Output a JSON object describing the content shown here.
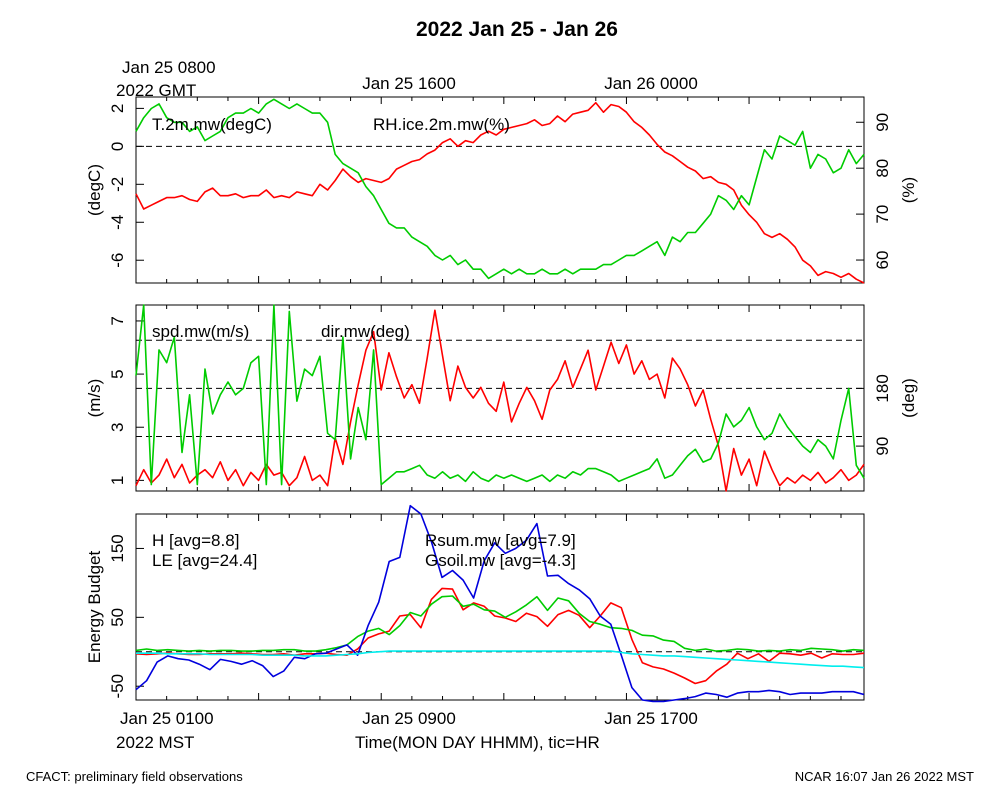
{
  "title": "2022 Jan 25 - Jan 26",
  "top_time_labels": [
    "Jan 25 1600",
    "Jan 26 0000"
  ],
  "top_first_label": [
    "Jan 25 0800",
    "2022 GMT"
  ],
  "bottom_time_labels": [
    "Jan 25 0900",
    "Jan 25 1700"
  ],
  "bottom_first_label": [
    "Jan 25 0100",
    "2022 MST"
  ],
  "xlabel": "Time(MON DAY HHMM), tic=HR",
  "footer_left": "CFACT: preliminary field observations",
  "footer_right": "NCAR 16:07 Jan 26 2022 MST",
  "colors": {
    "red": "#ff0000",
    "green": "#00cc00",
    "blue": "#0000dd",
    "cyan": "#00eeee"
  },
  "chart_data": [
    {
      "type": "line",
      "panel": "temperature-humidity",
      "x_hours_mst": [
        0,
        0.25,
        0.5,
        0.75,
        1,
        1.25,
        1.5,
        1.75,
        2,
        2.25,
        2.5,
        2.75,
        3,
        3.25,
        3.5,
        3.75,
        4,
        4.25,
        4.5,
        4.75,
        5,
        5.25,
        5.5,
        5.75,
        6,
        6.25,
        6.5,
        6.75,
        7,
        7.25,
        7.5,
        7.75,
        8,
        8.25,
        8.5,
        8.75,
        9,
        9.25,
        9.5,
        9.75,
        10,
        10.25,
        10.5,
        10.75,
        11,
        11.25,
        11.5,
        11.75,
        12,
        12.25,
        12.5,
        12.75,
        13,
        13.25,
        13.5,
        13.75,
        14,
        14.25,
        14.5,
        14.75,
        15,
        15.25,
        15.5,
        15.75,
        16,
        16.25,
        16.5,
        16.75,
        17,
        17.25,
        17.5,
        17.75,
        18,
        18.25,
        18.5,
        18.75,
        19,
        19.25,
        19.5,
        19.75,
        20,
        20.25,
        20.5,
        20.75,
        21,
        21.25,
        21.5,
        21.75,
        22,
        22.25,
        22.5,
        22.75,
        23,
        23.25,
        23.5,
        23.75
      ],
      "ylabel_left": "(degC)",
      "ylabel_right": "(%)",
      "ylim_left": [
        -7.2,
        2.6
      ],
      "ylim_right": [
        55,
        95.5
      ],
      "yticks_left": [
        2,
        0,
        -2,
        -4,
        -6
      ],
      "yticks_right": [
        90,
        80,
        70,
        60
      ],
      "dashed_y_left": [
        0
      ],
      "series": [
        {
          "name": "T.2m.mw(degC)",
          "axis": "left",
          "color": "#ff0000",
          "values": [
            -2.5,
            -3.3,
            -3.1,
            -2.9,
            -2.7,
            -2.7,
            -2.6,
            -2.8,
            -2.9,
            -2.4,
            -2.2,
            -2.6,
            -2.6,
            -2.5,
            -2.7,
            -2.6,
            -2.6,
            -2.3,
            -2.7,
            -2.6,
            -2.7,
            -2.4,
            -2.5,
            -2.6,
            -2.0,
            -2.3,
            -1.8,
            -1.2,
            -1.6,
            -1.9,
            -1.7,
            -1.8,
            -1.9,
            -1.7,
            -1.2,
            -1.0,
            -0.8,
            -0.7,
            -0.4,
            -0.2,
            0.2,
            0.4,
            0.0,
            0.3,
            0.2,
            0.6,
            0.8,
            0.6,
            0.9,
            1.0,
            1.1,
            1.2,
            1.4,
            1.1,
            1.2,
            1.6,
            1.3,
            1.7,
            1.8,
            1.9,
            2.3,
            1.8,
            2.2,
            2.1,
            1.8,
            1.3,
            1.0,
            0.6,
            0.1,
            -0.3,
            -0.5,
            -0.8,
            -1.1,
            -1.3,
            -1.7,
            -1.6,
            -1.9,
            -2.0,
            -2.3,
            -3.1,
            -3.6,
            -4.0,
            -4.6,
            -4.8,
            -4.6,
            -4.9,
            -5.3,
            -6.0,
            -6.3,
            -6.8,
            -6.6,
            -6.7,
            -6.9,
            -6.7,
            -7.0,
            -7.2
          ]
        },
        {
          "name": "RH.ice.2m.mw(%)",
          "axis": "right",
          "color": "#00cc00",
          "values": [
            88,
            91,
            93,
            94,
            91,
            90,
            90,
            88,
            89,
            86,
            87,
            88,
            91,
            92,
            92,
            93,
            92,
            94,
            95,
            94,
            93,
            94,
            93,
            92,
            92,
            90,
            83,
            81,
            80,
            79,
            76,
            74,
            71,
            68,
            67,
            67,
            65,
            64,
            63,
            61,
            60,
            61,
            59,
            60,
            58,
            58,
            56,
            57,
            58,
            57,
            58,
            57,
            57,
            58,
            57,
            57,
            58,
            57,
            58,
            58,
            58,
            59,
            59,
            60,
            61,
            61,
            62,
            63,
            64,
            61,
            65,
            64,
            66,
            66,
            68,
            70,
            74,
            73,
            71,
            74,
            72,
            78,
            84,
            82,
            87,
            86,
            85,
            88,
            80,
            83,
            82,
            79,
            80,
            84,
            81,
            83
          ]
        }
      ]
    },
    {
      "type": "line",
      "panel": "wind",
      "ylabel_left": "(m/s)",
      "ylabel_right": "(deg)",
      "ylim_left": [
        0.6,
        7.6
      ],
      "ylim_right": [
        20,
        310
      ],
      "yticks_left": [
        7,
        5,
        3,
        1
      ],
      "yticks_right": [
        180,
        90
      ],
      "dashed_y_right": [
        255,
        180,
        105
      ],
      "series": [
        {
          "name": "spd.mw(m/s)",
          "axis": "left",
          "color": "#ff0000",
          "values": [
            0.8,
            1.4,
            0.9,
            1.2,
            1.8,
            1.1,
            1.6,
            0.9,
            1.2,
            1.4,
            1.1,
            1.7,
            1.0,
            1.4,
            0.8,
            1.3,
            1.0,
            1.6,
            1.2,
            1.3,
            0.8,
            1.1,
            1.9,
            1.0,
            1.2,
            0.8,
            2.6,
            1.6,
            3.2,
            4.6,
            5.9,
            6.6,
            4.4,
            5.8,
            4.9,
            4.1,
            4.6,
            3.9,
            5.6,
            7.4,
            5.7,
            4.0,
            5.3,
            4.5,
            4.1,
            4.5,
            3.9,
            3.6,
            4.7,
            3.2,
            3.9,
            4.5,
            4.0,
            3.3,
            4.4,
            4.8,
            5.5,
            4.5,
            5.2,
            5.9,
            4.4,
            5.3,
            6.2,
            5.4,
            6.1,
            5.0,
            5.5,
            4.8,
            5.0,
            4.1,
            5.6,
            5.2,
            4.6,
            3.8,
            4.4,
            3.3,
            2.3,
            0.6,
            2.2,
            1.2,
            1.8,
            0.8,
            2.1,
            1.4,
            0.8,
            1.1,
            0.9,
            1.2,
            1.0,
            1.3,
            0.9,
            1.1,
            1.4,
            1.0,
            1.2,
            1.6
          ]
        },
        {
          "name": "dir.mw(deg)",
          "axis": "right",
          "color": "#00cc00",
          "values": [
            200,
            310,
            30,
            240,
            220,
            260,
            80,
            170,
            30,
            210,
            140,
            170,
            190,
            170,
            180,
            220,
            230,
            30,
            310,
            30,
            300,
            160,
            210,
            200,
            230,
            110,
            100,
            260,
            70,
            150,
            100,
            240,
            30,
            40,
            50,
            50,
            55,
            60,
            45,
            40,
            50,
            40,
            45,
            35,
            50,
            40,
            35,
            45,
            40,
            45,
            40,
            35,
            40,
            45,
            35,
            45,
            40,
            50,
            45,
            55,
            55,
            50,
            45,
            35,
            40,
            45,
            50,
            55,
            70,
            40,
            45,
            60,
            75,
            85,
            65,
            70,
            95,
            140,
            120,
            130,
            150,
            120,
            100,
            110,
            140,
            120,
            105,
            90,
            80,
            100,
            90,
            70,
            130,
            180,
            60,
            40
          ]
        }
      ]
    },
    {
      "type": "line",
      "panel": "energy-budget",
      "ylabel_left": "Energy Budget",
      "ylim_left": [
        -70,
        200
      ],
      "yticks_left": [
        150,
        50,
        -50
      ],
      "dashed_y_left": [
        0
      ],
      "series": [
        {
          "name": "H",
          "avg": "8.8",
          "label": "H [avg=8.8]",
          "color": "#ff0000",
          "values": [
            -3,
            -4,
            -3,
            -2,
            -3,
            -4,
            -4,
            -3,
            -3,
            -3,
            -2,
            -3,
            -4,
            -4,
            -3,
            -5,
            -3,
            -3,
            -2,
            -4,
            -5,
            4,
            20,
            26,
            30,
            52,
            54,
            35,
            76,
            92,
            91,
            61,
            71,
            66,
            52,
            49,
            44,
            56,
            51,
            37,
            54,
            60,
            53,
            35,
            52,
            71,
            64,
            18,
            -16,
            -22,
            -25,
            -31,
            -38,
            -46,
            -42,
            -28,
            -18,
            -2,
            -10,
            -3,
            -14,
            -2,
            -3,
            -5,
            -2,
            -9,
            -3,
            -4,
            -4,
            -2
          ]
        },
        {
          "name": "LE",
          "avg": "24.4",
          "label": "LE [avg=24.4]",
          "color": "#00cc00",
          "values": [
            2,
            4,
            2,
            3,
            2,
            1,
            2,
            1,
            2,
            2,
            1,
            1,
            2,
            2,
            3,
            3,
            1,
            1,
            3,
            6,
            10,
            22,
            30,
            34,
            25,
            38,
            57,
            52,
            69,
            80,
            81,
            66,
            69,
            61,
            59,
            50,
            58,
            68,
            80,
            60,
            78,
            74,
            56,
            44,
            40,
            35,
            34,
            31,
            24,
            23,
            17,
            15,
            5,
            2,
            4,
            1,
            2,
            4,
            3,
            1,
            2,
            1,
            3,
            2,
            5,
            4,
            3,
            1,
            3,
            2
          ]
        },
        {
          "name": "Rsum.mw",
          "avg": "7.9",
          "label": "Rsum.mw [avg=7.9]",
          "color": "#0000dd",
          "values": [
            -55,
            -42,
            -15,
            -6,
            -10,
            -12,
            -18,
            -26,
            -11,
            -14,
            -18,
            -13,
            -20,
            -36,
            -28,
            -8,
            -10,
            -3,
            -2,
            4,
            10,
            -5,
            38,
            72,
            131,
            137,
            212,
            200,
            160,
            108,
            118,
            104,
            78,
            132,
            158,
            143,
            150,
            162,
            186,
            110,
            111,
            99,
            90,
            77,
            52,
            40,
            -5,
            -52,
            -70,
            -72,
            -72,
            -70,
            -68,
            -65,
            -60,
            -62,
            -66,
            -60,
            -58,
            -58,
            -56,
            -58,
            -62,
            -60,
            -60,
            -60,
            -58,
            -58,
            -58,
            -62
          ]
        },
        {
          "name": "Gsoil.mw",
          "avg": "-4.3",
          "label": "Gsoil.mw [avg=-4.3]",
          "color": "#00eeee",
          "values": [
            -2,
            -2,
            -2,
            -3,
            -3,
            -3,
            -3,
            -4,
            -4,
            -4,
            -4,
            -4,
            -5,
            -5,
            -5,
            -5,
            -6,
            -6,
            -6,
            -5,
            -4,
            -3,
            -1,
            0,
            1,
            1,
            1,
            1,
            1,
            1,
            1,
            1,
            1,
            1,
            1,
            1,
            1,
            1,
            1,
            1,
            1,
            1,
            1,
            1,
            1,
            1,
            -1,
            -3,
            -4,
            -5,
            -6,
            -6,
            -7,
            -8,
            -9,
            -10,
            -11,
            -12,
            -13,
            -14,
            -15,
            -16,
            -17,
            -18,
            -19,
            -20,
            -21,
            -21,
            -22,
            -23
          ]
        }
      ]
    }
  ]
}
